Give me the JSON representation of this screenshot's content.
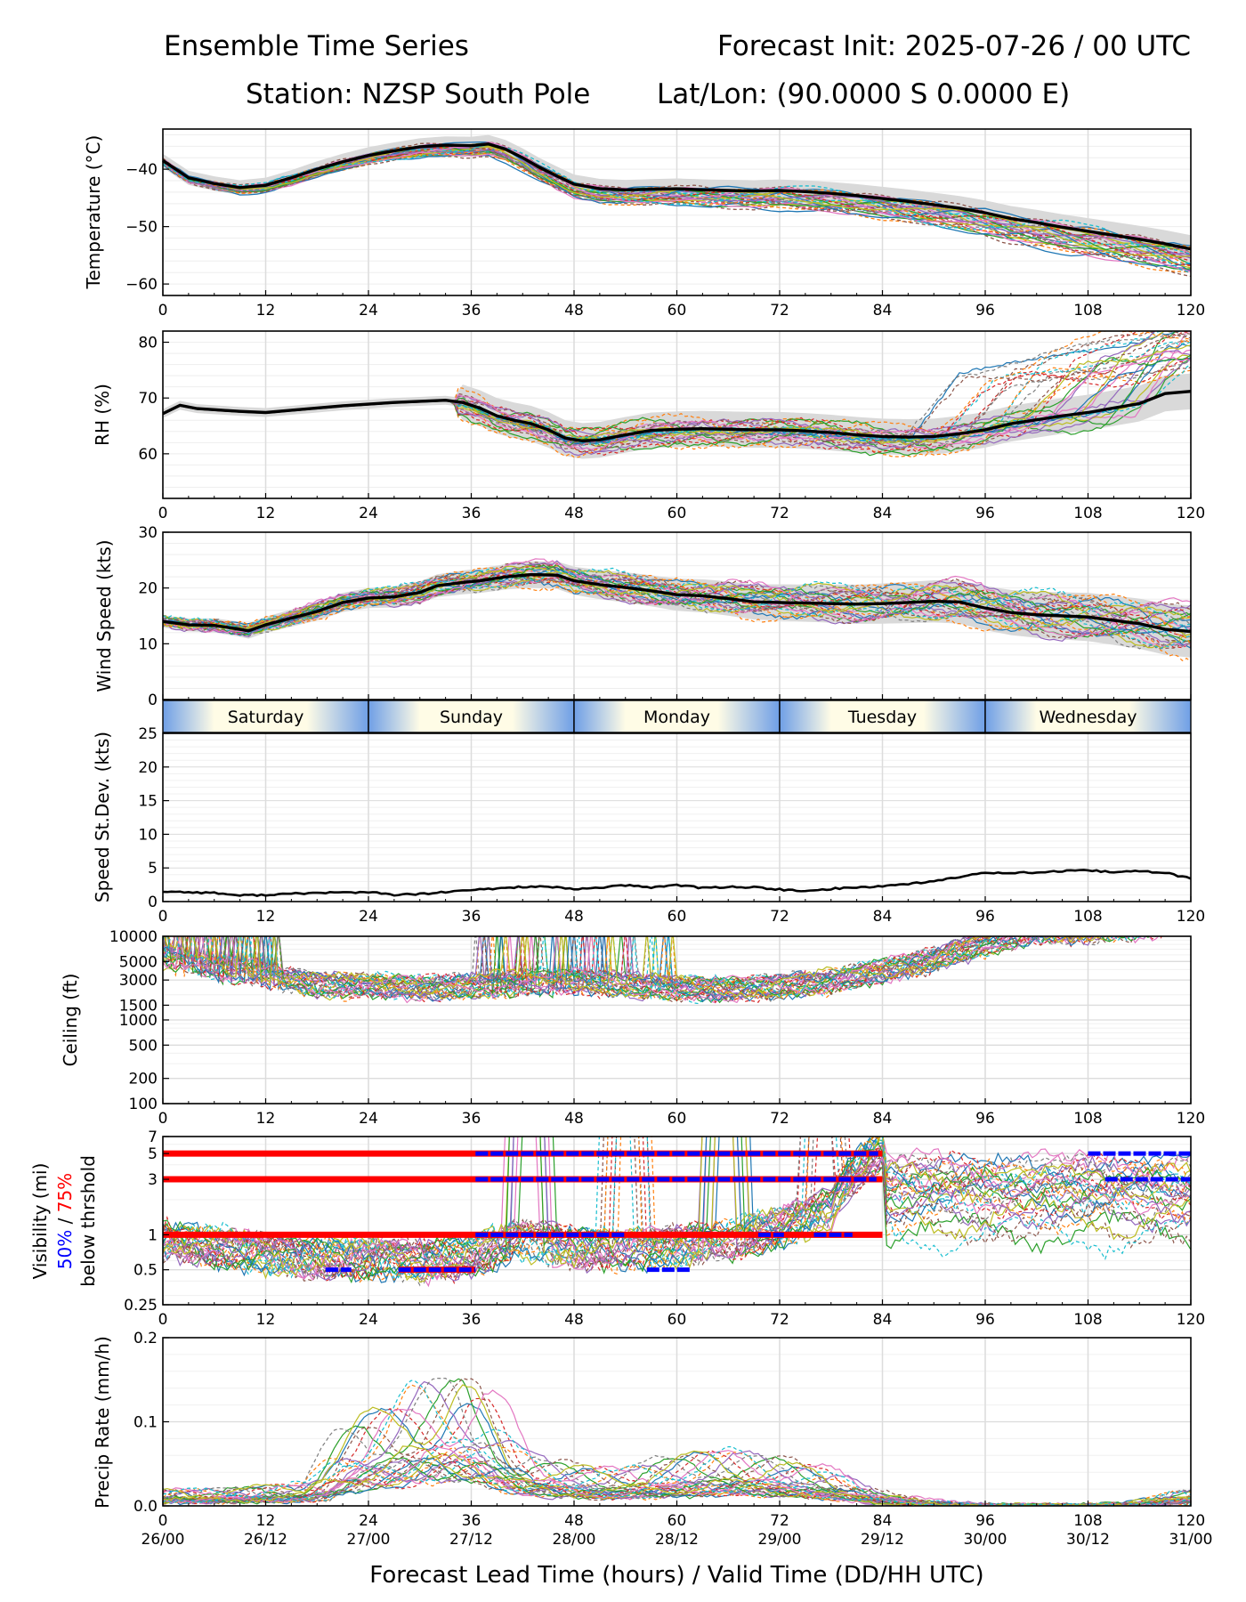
{
  "header": {
    "title_left": "Ensemble Time Series",
    "title_right": "Forecast Init: 2025-07-26 / 00 UTC",
    "station": "Station: NZSP South Pole",
    "latlon": "Lat/Lon: (90.0000 S 0.0000 E)"
  },
  "xaxis": {
    "ticks": [
      0,
      12,
      24,
      36,
      48,
      60,
      72,
      84,
      96,
      108,
      120
    ],
    "valid_times": [
      "26/00",
      "26/12",
      "27/00",
      "27/12",
      "28/00",
      "28/12",
      "29/00",
      "29/12",
      "30/00",
      "30/12",
      "31/00"
    ],
    "label": "Forecast Lead Time (hours) / Valid Time (DD/HH UTC)"
  },
  "days": [
    "Saturday",
    "Sunday",
    "Monday",
    "Tuesday",
    "Wednesday"
  ],
  "colors": {
    "ensemble_mean": "#000000",
    "spread_band": "#d9d9d9",
    "p50_bar": "#0000ff",
    "p75_bar": "#ff0000",
    "day_band_edge": "#6f9fe6",
    "day_band_mid": "#fffce6",
    "members": [
      "#1f77b4",
      "#ff7f0e",
      "#2ca02c",
      "#d62728",
      "#9467bd",
      "#8c564b",
      "#e377c2",
      "#7f7f7f",
      "#bcbd22",
      "#17becf"
    ]
  },
  "chart_data": [
    {
      "type": "line",
      "ylabel": "Temperature (°C)",
      "yticks": [
        -40,
        -50,
        -60
      ],
      "ylim": [
        -62,
        -33
      ],
      "series": [
        {
          "values": [
            [
              0,
              -38.5
            ],
            [
              3,
              -41.5
            ],
            [
              6,
              -42.5
            ],
            [
              9,
              -43.2
            ],
            [
              12,
              -42.8
            ],
            [
              15,
              -41.5
            ],
            [
              18,
              -40
            ],
            [
              21,
              -38.7
            ],
            [
              24,
              -37.6
            ],
            [
              27,
              -36.8
            ],
            [
              30,
              -36.1
            ],
            [
              33,
              -35.8
            ],
            [
              36,
              -35.9
            ],
            [
              38,
              -35.6
            ],
            [
              40,
              -36.5
            ],
            [
              42,
              -38
            ],
            [
              44,
              -39.7
            ],
            [
              46,
              -41.2
            ],
            [
              48,
              -42.6
            ],
            [
              51,
              -43.4
            ],
            [
              54,
              -43.6
            ],
            [
              57,
              -43.5
            ],
            [
              60,
              -43.4
            ],
            [
              63,
              -43.6
            ],
            [
              66,
              -43.7
            ],
            [
              69,
              -43.8
            ],
            [
              72,
              -43.7
            ],
            [
              75,
              -43.9
            ],
            [
              78,
              -44.2
            ],
            [
              81,
              -44.6
            ],
            [
              84,
              -45.1
            ],
            [
              87,
              -45.6
            ],
            [
              90,
              -46.2
            ],
            [
              93,
              -46.8
            ],
            [
              96,
              -47.6
            ],
            [
              99,
              -48.6
            ],
            [
              102,
              -49.3
            ],
            [
              105,
              -50.1
            ],
            [
              108,
              -50.8
            ],
            [
              111,
              -51.5
            ],
            [
              114,
              -52.2
            ],
            [
              117,
              -53
            ],
            [
              120,
              -53.9
            ]
          ]
        }
      ],
      "spread_half_width": 1.2
    },
    {
      "type": "line",
      "ylabel": "RH (%)",
      "yticks": [
        60,
        70,
        80
      ],
      "ylim": [
        52,
        82
      ],
      "series": [
        {
          "values": [
            [
              0,
              67.2
            ],
            [
              2,
              68.7
            ],
            [
              4,
              68.1
            ],
            [
              6,
              67.9
            ],
            [
              9,
              67.6
            ],
            [
              12,
              67.4
            ],
            [
              15,
              67.8
            ],
            [
              18,
              68.2
            ],
            [
              21,
              68.6
            ],
            [
              24,
              68.9
            ],
            [
              27,
              69.2
            ],
            [
              30,
              69.4
            ],
            [
              33,
              69.6
            ],
            [
              35,
              69.2
            ],
            [
              37,
              68.2
            ],
            [
              39,
              66.8
            ],
            [
              41,
              66
            ],
            [
              43,
              65.4
            ],
            [
              45,
              64.3
            ],
            [
              47,
              62.8
            ],
            [
              49,
              62.3
            ],
            [
              51,
              62.5
            ],
            [
              54,
              63.4
            ],
            [
              57,
              64.2
            ],
            [
              60,
              64.4
            ],
            [
              63,
              64.5
            ],
            [
              66,
              64.4
            ],
            [
              69,
              64.3
            ],
            [
              72,
              64.3
            ],
            [
              75,
              64.1
            ],
            [
              78,
              63.8
            ],
            [
              81,
              63.4
            ],
            [
              84,
              63.1
            ],
            [
              87,
              63
            ],
            [
              90,
              63.1
            ],
            [
              93,
              63.6
            ],
            [
              96,
              64.3
            ],
            [
              99,
              65.4
            ],
            [
              102,
              66.1
            ],
            [
              105,
              66.8
            ],
            [
              108,
              67.4
            ],
            [
              111,
              68.2
            ],
            [
              114,
              69
            ],
            [
              117,
              70.8
            ],
            [
              120,
              71.2
            ]
          ]
        }
      ],
      "spread_half_width": 1.6
    },
    {
      "type": "line",
      "ylabel": "Wind Speed (kts)",
      "yticks": [
        0,
        10,
        20,
        30
      ],
      "ylim": [
        0,
        30
      ],
      "series": [
        {
          "values": [
            [
              0,
              14
            ],
            [
              3,
              13.4
            ],
            [
              6,
              13.3
            ],
            [
              9,
              12.6
            ],
            [
              10,
              12.3
            ],
            [
              12,
              13.4
            ],
            [
              15,
              14.6
            ],
            [
              18,
              15.8
            ],
            [
              21,
              17.4
            ],
            [
              24,
              18.2
            ],
            [
              27,
              18.4
            ],
            [
              30,
              19.2
            ],
            [
              32,
              20.4
            ],
            [
              35,
              21
            ],
            [
              37,
              21.3
            ],
            [
              40,
              22
            ],
            [
              43,
              22.4
            ],
            [
              46,
              22.3
            ],
            [
              48,
              21.3
            ],
            [
              51,
              20.6
            ],
            [
              54,
              20.1
            ],
            [
              57,
              19.5
            ],
            [
              60,
              18.8
            ],
            [
              63,
              18.6
            ],
            [
              66,
              18.1
            ],
            [
              69,
              17.5
            ],
            [
              72,
              17.4
            ],
            [
              75,
              17.3
            ],
            [
              78,
              17.2
            ],
            [
              81,
              17.1
            ],
            [
              84,
              17.2
            ],
            [
              87,
              17.4
            ],
            [
              90,
              17.6
            ],
            [
              93,
              17.5
            ],
            [
              96,
              16.4
            ],
            [
              99,
              15.6
            ],
            [
              102,
              15.2
            ],
            [
              105,
              15
            ],
            [
              108,
              14.8
            ],
            [
              111,
              14.2
            ],
            [
              114,
              13.6
            ],
            [
              117,
              12.6
            ],
            [
              120,
              12.2
            ]
          ]
        }
      ],
      "spread_half_width": 1.8
    },
    {
      "type": "line",
      "ylabel": "Speed St.Dev. (kts)",
      "yticks": [
        0,
        5,
        10,
        15,
        20,
        25
      ],
      "ylim": [
        0,
        25
      ],
      "series": [
        {
          "values": [
            [
              0,
              1.5
            ],
            [
              6,
              1.3
            ],
            [
              9,
              0.9
            ],
            [
              12,
              1
            ],
            [
              18,
              1.3
            ],
            [
              24,
              1.4
            ],
            [
              27,
              1
            ],
            [
              30,
              1.1
            ],
            [
              36,
              1.7
            ],
            [
              42,
              2.2
            ],
            [
              45,
              2.2
            ],
            [
              48,
              1.8
            ],
            [
              54,
              2.4
            ],
            [
              57,
              2.1
            ],
            [
              60,
              2.5
            ],
            [
              63,
              2
            ],
            [
              66,
              2.2
            ],
            [
              69,
              2.1
            ],
            [
              72,
              1.8
            ],
            [
              75,
              1.5
            ],
            [
              78,
              1.9
            ],
            [
              84,
              2.3
            ],
            [
              90,
              3
            ],
            [
              96,
              4.3
            ],
            [
              102,
              4.3
            ],
            [
              105,
              4.5
            ],
            [
              108,
              4.6
            ],
            [
              111,
              4.4
            ],
            [
              114,
              4.5
            ],
            [
              117,
              4.3
            ],
            [
              120,
              3.4
            ]
          ]
        }
      ]
    },
    {
      "type": "line",
      "ylabel": "Ceiling (ft)",
      "yscale": "log",
      "yticks": [
        10000,
        5000,
        3000,
        1500,
        1000,
        500,
        200,
        100
      ],
      "ylim": [
        100,
        10000
      ],
      "member_median": [
        [
          0,
          5000
        ],
        [
          6,
          3500
        ],
        [
          12,
          3000
        ],
        [
          18,
          2300
        ],
        [
          24,
          2200
        ],
        [
          30,
          2100
        ],
        [
          36,
          2200
        ],
        [
          42,
          2400
        ],
        [
          48,
          2500
        ],
        [
          54,
          2300
        ],
        [
          60,
          2100
        ],
        [
          66,
          2000
        ],
        [
          72,
          2200
        ],
        [
          78,
          2500
        ],
        [
          84,
          3300
        ],
        [
          90,
          4500
        ],
        [
          96,
          7000
        ],
        [
          102,
          10000
        ],
        [
          108,
          10000
        ],
        [
          114,
          10000
        ],
        [
          120,
          10000
        ]
      ]
    },
    {
      "type": "line",
      "ylabel": "Visibility (mi)",
      "ylabel_blue": "50%",
      "ylabel_sep": " / ",
      "ylabel_red": "75%",
      "ylabel_line2": "below thrshold",
      "yscale": "log",
      "yticks": [
        0.25,
        0.5,
        1,
        3,
        5,
        7
      ],
      "ylim": [
        0.25,
        7
      ],
      "thresholds": [
        {
          "value": 5,
          "p75": [
            [
              0,
              84
            ]
          ],
          "p50": [
            [
              36.5,
              83.5
            ],
            [
              108,
              120
            ]
          ]
        },
        {
          "value": 3,
          "p75": [
            [
              0,
              84
            ]
          ],
          "p50": [
            [
              36.5,
              83.3
            ],
            [
              110,
              120
            ]
          ]
        },
        {
          "value": 1,
          "p75": [
            [
              0,
              84
            ]
          ],
          "p50": [
            [
              36.5,
              54
            ],
            [
              69.5,
              72.5
            ],
            [
              76,
              80.5
            ]
          ]
        },
        {
          "value": 0.5,
          "p75": [
            [
              27.5,
              36.5
            ]
          ],
          "p50": [
            [
              19,
              22
            ],
            [
              27.5,
              36.5
            ],
            [
              56.5,
              61.5
            ]
          ]
        }
      ],
      "member_median": [
        [
          0,
          0.8
        ],
        [
          6,
          0.7
        ],
        [
          12,
          0.6
        ],
        [
          18,
          0.55
        ],
        [
          24,
          0.55
        ],
        [
          30,
          0.52
        ],
        [
          36,
          0.58
        ],
        [
          42,
          0.8
        ],
        [
          48,
          0.7
        ],
        [
          54,
          0.65
        ],
        [
          60,
          0.7
        ],
        [
          66,
          0.8
        ],
        [
          72,
          1
        ],
        [
          78,
          1.5
        ],
        [
          84,
          5
        ],
        [
          90,
          2
        ],
        [
          96,
          3
        ],
        [
          102,
          5
        ],
        [
          108,
          3
        ],
        [
          114,
          2
        ],
        [
          120,
          2
        ]
      ]
    },
    {
      "type": "line",
      "ylabel": "Precip Rate (mm/h)",
      "yticks": [
        0,
        0.1,
        0.2
      ],
      "ylim": [
        0,
        0.2
      ],
      "member_median": [
        [
          0,
          0.01
        ],
        [
          6,
          0.01
        ],
        [
          12,
          0.012
        ],
        [
          18,
          0.015
        ],
        [
          21,
          0.04
        ],
        [
          24,
          0.055
        ],
        [
          27,
          0.06
        ],
        [
          30,
          0.075
        ],
        [
          33,
          0.075
        ],
        [
          36,
          0.08
        ],
        [
          39,
          0.06
        ],
        [
          42,
          0.035
        ],
        [
          48,
          0.025
        ],
        [
          54,
          0.022
        ],
        [
          60,
          0.03
        ],
        [
          66,
          0.035
        ],
        [
          72,
          0.03
        ],
        [
          78,
          0.022
        ],
        [
          84,
          0.008
        ],
        [
          90,
          0.003
        ],
        [
          96,
          0.001
        ],
        [
          108,
          0.001
        ],
        [
          114,
          0.002
        ],
        [
          120,
          0.01
        ]
      ]
    }
  ]
}
